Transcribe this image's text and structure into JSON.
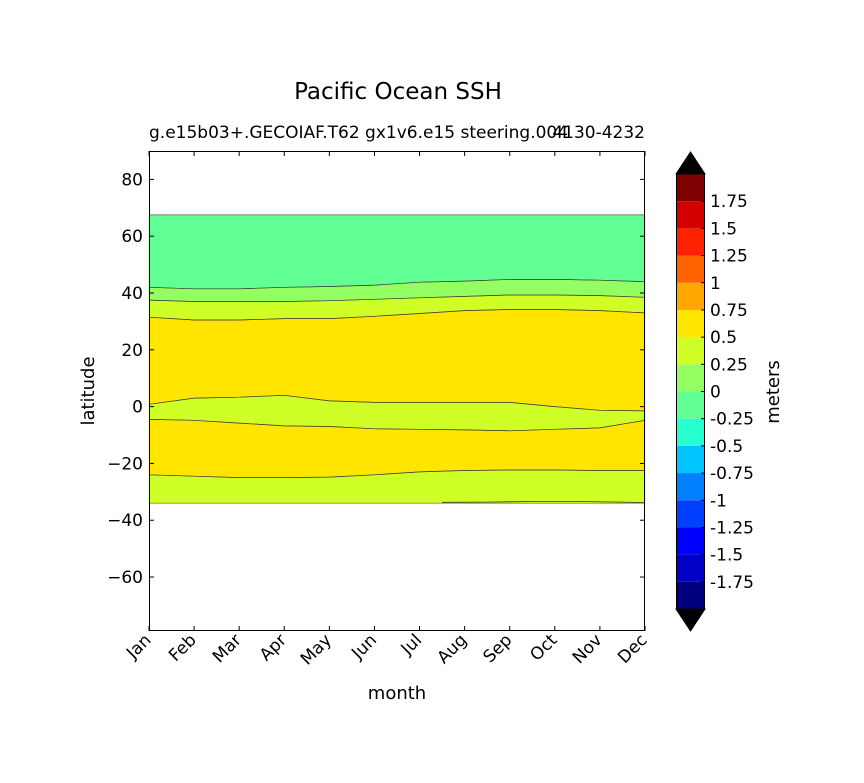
{
  "chart_data": {
    "type": "contour",
    "title": "Pacific Ocean SSH",
    "subtitle_left": "g.e15b03+.GECOIAF.T62 gx1v6.e15 steering.004",
    "subtitle_right": "4130-4232",
    "xlabel": "month",
    "ylabel": "latitude",
    "x_categories": [
      "Jan",
      "Feb",
      "Mar",
      "Apr",
      "May",
      "Jun",
      "Jul",
      "Aug",
      "Sep",
      "Oct",
      "Nov",
      "Dec"
    ],
    "ylim": [
      -79,
      90
    ],
    "yticks": [
      80,
      60,
      40,
      20,
      0,
      -20,
      -40,
      -60
    ],
    "ytick_labels": [
      "80",
      "60",
      "40",
      "20",
      "0",
      "−20",
      "−40",
      "−60"
    ],
    "grid": false,
    "colorbar": {
      "label": "meters",
      "levels": [
        -2,
        -1.75,
        -1.5,
        -1.25,
        -1,
        -0.75,
        -0.5,
        -0.25,
        0,
        0.25,
        0.5,
        0.75,
        1,
        1.25,
        1.5,
        1.75,
        2
      ],
      "tick_values": [
        1.75,
        1.5,
        1.25,
        1,
        0.75,
        0.5,
        0.25,
        0,
        -0.25,
        -0.5,
        -0.75,
        -1,
        -1.25,
        -1.5,
        -1.75
      ],
      "tick_labels": [
        "1.75",
        "1.5",
        "1.25",
        "1",
        "0.75",
        "0.5",
        "0.25",
        "0",
        "-0.25",
        "-0.5",
        "-0.75",
        "-1",
        "-1.25",
        "-1.5",
        "-1.75"
      ],
      "colors": [
        "#00007f",
        "#0000c6",
        "#0000ff",
        "#0040ff",
        "#0080ff",
        "#00c4ff",
        "#27ffd0",
        "#62ff94",
        "#94ff62",
        "#d0ff27",
        "#ffe500",
        "#ffa600",
        "#ff6300",
        "#ff2200",
        "#d40000",
        "#7f0000"
      ],
      "extend_low_color": "#000000",
      "extend_high_color": "#000000"
    },
    "regions": [
      {
        "level": "-0.25 to 0",
        "color": "#62ff94",
        "lower": [
          42,
          41.5,
          41.5,
          42,
          42.3,
          42.8,
          43.8,
          44.2,
          44.8,
          44.8,
          44.5,
          44
        ],
        "upper": [
          67.5,
          67.5,
          67.5,
          67.5,
          67.5,
          67.5,
          67.5,
          67.5,
          67.5,
          67.5,
          67.5,
          67.5
        ]
      },
      {
        "level": "0 to 0.25",
        "color": "#94ff62",
        "lower": [
          37.5,
          37,
          37,
          37,
          37.3,
          37.8,
          38.3,
          38.8,
          39.3,
          39.3,
          39.1,
          38.5
        ],
        "upper": [
          42,
          41.5,
          41.5,
          42,
          42.3,
          42.8,
          43.8,
          44.2,
          44.8,
          44.8,
          44.5,
          44
        ]
      },
      {
        "level": "0.25 to 0.5",
        "color": "#d0ff27",
        "lower": [
          31.5,
          30.5,
          30.5,
          31,
          31,
          31.8,
          32.8,
          33.8,
          34.2,
          34.2,
          33.8,
          33
        ],
        "upper": [
          37.5,
          37,
          37,
          37,
          37.3,
          37.8,
          38.3,
          38.8,
          39.3,
          39.3,
          39.1,
          38.5
        ]
      },
      {
        "level": "0.5 to 0.75",
        "color": "#ffe500",
        "lower": [
          0.8,
          3,
          3.3,
          4,
          2,
          1.5,
          1.5,
          1.5,
          1.5,
          0,
          -1.3,
          -1.5
        ],
        "upper": [
          31.5,
          30.5,
          30.5,
          31,
          31,
          31.8,
          32.8,
          33.8,
          34.2,
          34.2,
          33.8,
          33
        ]
      },
      {
        "level": "0.25 to 0.5",
        "color": "#d0ff27",
        "lower": [
          -4.5,
          -4.8,
          -5.8,
          -6.8,
          -7,
          -7.8,
          -8,
          -8.2,
          -8.5,
          -8,
          -7.5,
          -4.8
        ],
        "upper": [
          0.8,
          3,
          3.3,
          4,
          2,
          1.5,
          1.5,
          1.5,
          1.5,
          0,
          -1.3,
          -1.5
        ]
      },
      {
        "level": "0.5 to 0.75",
        "color": "#ffe500",
        "lower": [
          -24,
          -24.5,
          -25,
          -25,
          -24.8,
          -24,
          -23,
          -22.5,
          -22.3,
          -22.3,
          -22.5,
          -22.5
        ],
        "upper": [
          -4.5,
          -4.8,
          -5.8,
          -6.8,
          -7,
          -7.8,
          -8,
          -8.2,
          -8.5,
          -8,
          -7.5,
          -4.8
        ]
      },
      {
        "level": "0.25 to 0.5",
        "color": "#d0ff27",
        "lower": [
          -34,
          -34,
          -34,
          -34,
          -34,
          -34,
          -34,
          -34,
          -34,
          -34,
          -34,
          -34
        ],
        "upper": [
          -24,
          -24.5,
          -25,
          -25,
          -24.8,
          -24,
          -23,
          -22.5,
          -22.3,
          -22.3,
          -22.5,
          -22.5
        ]
      }
    ],
    "extra_contours": [
      {
        "level": 0.25,
        "x": [
          6.5,
          7.5,
          8.5,
          9.5,
          10.5,
          11
        ],
        "y": [
          -33.7,
          -33.6,
          -33.4,
          -33.4,
          -33.6,
          -33.8
        ]
      }
    ]
  }
}
